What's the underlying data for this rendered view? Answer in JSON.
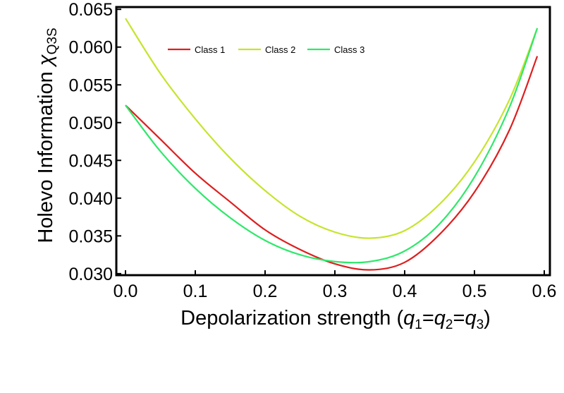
{
  "chart_data": {
    "type": "line",
    "title": "",
    "xlabel": {
      "main": "Depolarization strength (",
      "q": "q",
      "sub1": "1",
      "sub2": "2",
      "sub3": "3",
      "eq": "=",
      "close": ")"
    },
    "ylabel": {
      "main": "Holevo Information ",
      "chi": "χ",
      "sub": "Q3S"
    },
    "xlim": [
      0.0,
      0.6
    ],
    "ylim": [
      0.0298,
      0.0653
    ],
    "xticks": [
      0.0,
      0.1,
      0.2,
      0.3,
      0.4,
      0.5,
      0.6
    ],
    "xtick_labels": [
      "0.0",
      "0.1",
      "0.2",
      "0.3",
      "0.4",
      "0.5",
      "0.6"
    ],
    "yticks": [
      0.03,
      0.035,
      0.04,
      0.045,
      0.05,
      0.055,
      0.06,
      0.065
    ],
    "ytick_labels": [
      "0.030",
      "0.035",
      "0.040",
      "0.045",
      "0.050",
      "0.055",
      "0.060",
      "0.065"
    ],
    "legend_position": "top-left",
    "series": [
      {
        "name": "Class 1",
        "color": "#dd1f1f",
        "x": [
          0.0,
          0.05,
          0.1,
          0.15,
          0.2,
          0.25,
          0.3,
          0.35,
          0.4,
          0.45,
          0.5,
          0.55,
          0.59
        ],
        "values": [
          0.0523,
          0.0478,
          0.0433,
          0.0395,
          0.0358,
          0.0332,
          0.0313,
          0.0305,
          0.0315,
          0.0352,
          0.0408,
          0.049,
          0.0588
        ]
      },
      {
        "name": "Class 2",
        "color": "#c6e42c",
        "x": [
          0.0,
          0.05,
          0.1,
          0.15,
          0.2,
          0.25,
          0.3,
          0.35,
          0.4,
          0.45,
          0.5,
          0.55,
          0.59
        ],
        "values": [
          0.0638,
          0.0565,
          0.0505,
          0.0453,
          0.041,
          0.0376,
          0.0355,
          0.0347,
          0.0357,
          0.0392,
          0.0448,
          0.053,
          0.0625
        ]
      },
      {
        "name": "Class 3",
        "color": "#2ee86a",
        "x": [
          0.0,
          0.05,
          0.1,
          0.15,
          0.2,
          0.25,
          0.3,
          0.35,
          0.4,
          0.45,
          0.5,
          0.55,
          0.59
        ],
        "values": [
          0.0523,
          0.0462,
          0.0413,
          0.0374,
          0.0344,
          0.0325,
          0.0316,
          0.0316,
          0.033,
          0.0366,
          0.0428,
          0.052,
          0.0625
        ]
      }
    ]
  }
}
